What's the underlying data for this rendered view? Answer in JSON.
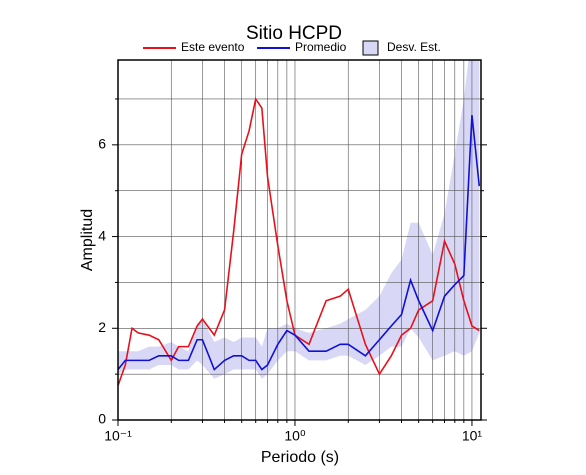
{
  "chart_data": {
    "type": "line",
    "title": "Sitio HCPD",
    "x_label": "Periodo (s)",
    "y_label": "Amplitud",
    "xlog": true,
    "grid": true,
    "xlim": [
      0.1,
      11.25
    ],
    "ylim": [
      0,
      7.85
    ],
    "xticks": [
      {
        "value": 0.1,
        "label": "10⁻¹"
      },
      {
        "value": 1,
        "label": "10⁰"
      },
      {
        "value": 10,
        "label": "10¹"
      }
    ],
    "xminor": [
      0.2,
      0.3,
      0.4,
      0.5,
      0.6,
      0.7,
      0.8,
      0.9,
      2,
      3,
      4,
      5,
      6,
      7,
      8,
      9
    ],
    "yticks": [
      0,
      2,
      4,
      6
    ],
    "yminor": [
      1,
      3,
      5,
      7
    ],
    "x": [
      0.1,
      0.11,
      0.12,
      0.13,
      0.15,
      0.17,
      0.2,
      0.22,
      0.25,
      0.28,
      0.3,
      0.35,
      0.4,
      0.45,
      0.5,
      0.55,
      0.6,
      0.65,
      0.7,
      0.8,
      0.9,
      1.0,
      1.2,
      1.5,
      1.8,
      2.0,
      2.5,
      3.0,
      3.5,
      4.0,
      4.5,
      5.0,
      6.0,
      7.0,
      8.0,
      9.0,
      10,
      11
    ],
    "series": [
      {
        "name": "Este evento",
        "color": "#e8101a",
        "values": [
          0.75,
          1.2,
          2.0,
          1.9,
          1.85,
          1.75,
          1.3,
          1.6,
          1.6,
          2.05,
          2.2,
          1.85,
          2.4,
          4.1,
          5.8,
          6.3,
          7.0,
          6.8,
          5.3,
          3.8,
          2.6,
          1.85,
          1.65,
          2.6,
          2.7,
          2.85,
          1.65,
          1.0,
          1.4,
          1.85,
          2.0,
          2.4,
          2.6,
          3.9,
          3.4,
          2.6,
          2.05,
          1.95
        ]
      },
      {
        "name": "Promedio",
        "color": "#1010d8",
        "values": [
          1.1,
          1.3,
          1.3,
          1.3,
          1.3,
          1.4,
          1.4,
          1.3,
          1.3,
          1.75,
          1.75,
          1.1,
          1.3,
          1.4,
          1.4,
          1.3,
          1.3,
          1.1,
          1.2,
          1.65,
          1.95,
          1.85,
          1.5,
          1.5,
          1.65,
          1.65,
          1.4,
          1.75,
          2.05,
          2.3,
          3.05,
          2.6,
          1.95,
          2.7,
          2.95,
          3.15,
          6.65,
          5.1
        ]
      },
      {
        "name": "Desv. Est.",
        "color": "#d8d8f6",
        "lower": [
          1.0,
          1.1,
          1.1,
          1.1,
          1.1,
          1.2,
          1.2,
          1.1,
          1.1,
          1.3,
          1.2,
          0.9,
          1.0,
          1.1,
          1.1,
          1.1,
          1.1,
          0.9,
          1.0,
          1.3,
          1.5,
          1.5,
          1.3,
          1.3,
          1.4,
          1.4,
          1.2,
          1.4,
          1.6,
          1.6,
          2.0,
          1.8,
          1.3,
          1.4,
          1.5,
          1.4,
          1.5,
          1.9
        ],
        "upper": [
          1.5,
          1.5,
          1.5,
          1.5,
          1.6,
          1.6,
          1.7,
          1.6,
          1.5,
          2.1,
          2.2,
          1.7,
          1.8,
          1.7,
          1.8,
          1.8,
          1.8,
          1.6,
          2.0,
          2.0,
          2.1,
          2.0,
          1.9,
          2.0,
          2.1,
          2.2,
          2.4,
          2.7,
          3.2,
          3.5,
          4.3,
          4.3,
          3.6,
          4.5,
          5.8,
          7.0,
          8.5,
          8.5
        ]
      }
    ]
  }
}
